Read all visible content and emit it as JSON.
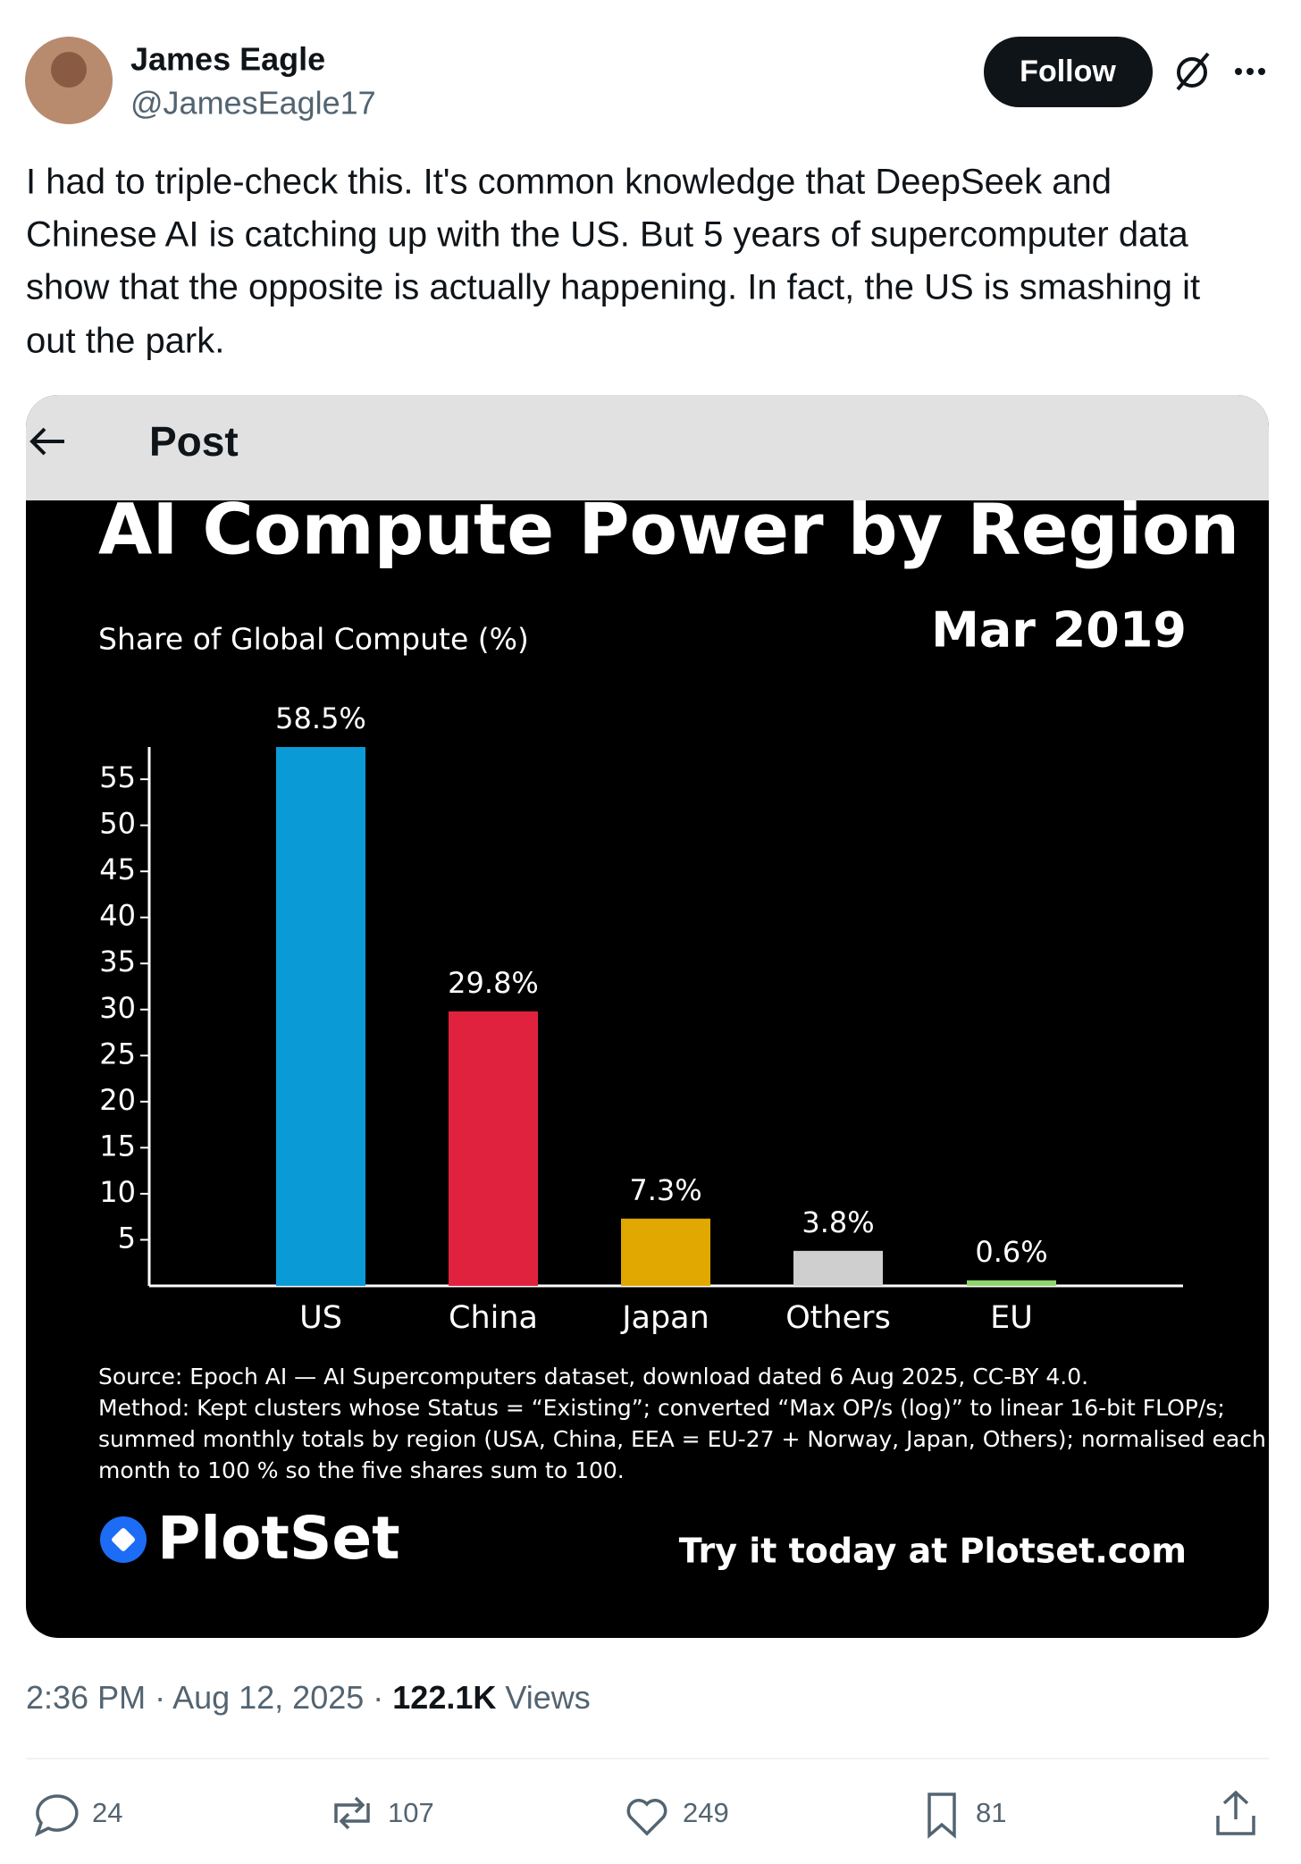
{
  "author": {
    "name": "James Eagle",
    "handle": "@JamesEagle17"
  },
  "follow": "Follow",
  "text_lines": [
    "I had to triple-check this. It's common knowledge that DeepSeek and",
    "Chinese AI is catching up with the US. But 5 years of supercomputer data",
    "show that the opposite is actually happening. In fact, the US is smashing it",
    "out the park."
  ],
  "card": {
    "header": "Post"
  },
  "chart_data": {
    "type": "bar",
    "title": "AI Compute Power by Region",
    "subtitle": "Share of Global Compute (%)",
    "annotation": "Mar 2019",
    "categories": [
      "US",
      "China",
      "Japan",
      "Others",
      "EU"
    ],
    "values": [
      58.5,
      29.8,
      7.3,
      3.8,
      0.6
    ],
    "value_labels": [
      "58.5%",
      "29.8%",
      "7.3%",
      "3.8%",
      "0.6%"
    ],
    "colors": [
      "#0a9bd6",
      "#e0223f",
      "#e0a800",
      "#cfcfcf",
      "#8fd46e"
    ],
    "ylim": [
      0,
      58.5
    ],
    "yticks": [
      5,
      10,
      15,
      20,
      25,
      30,
      35,
      40,
      45,
      50,
      55
    ],
    "grid": false,
    "source": [
      "Source: Epoch AI — AI Supercomputers dataset, download dated 6 Aug 2025, CC-BY 4.0.",
      "Method: Kept clusters whose Status = “Existing”; converted “Max OP/s (log)” to linear 16-bit FLOP/s;",
      "summed monthly totals by region (USA, China, EEA = EU-27 + Norway, Japan, Others); normalised each",
      "month to 100 % so the five shares sum to 100."
    ],
    "brand": "PlotSet",
    "cta": "Try it today at Plotset.com"
  },
  "footer": {
    "timestamp": "2:36 PM · Aug 12, 2025 ·",
    "views_count": "122.1K",
    "views_label": "Views"
  },
  "actions": [
    "24",
    "107",
    "249",
    "81"
  ]
}
